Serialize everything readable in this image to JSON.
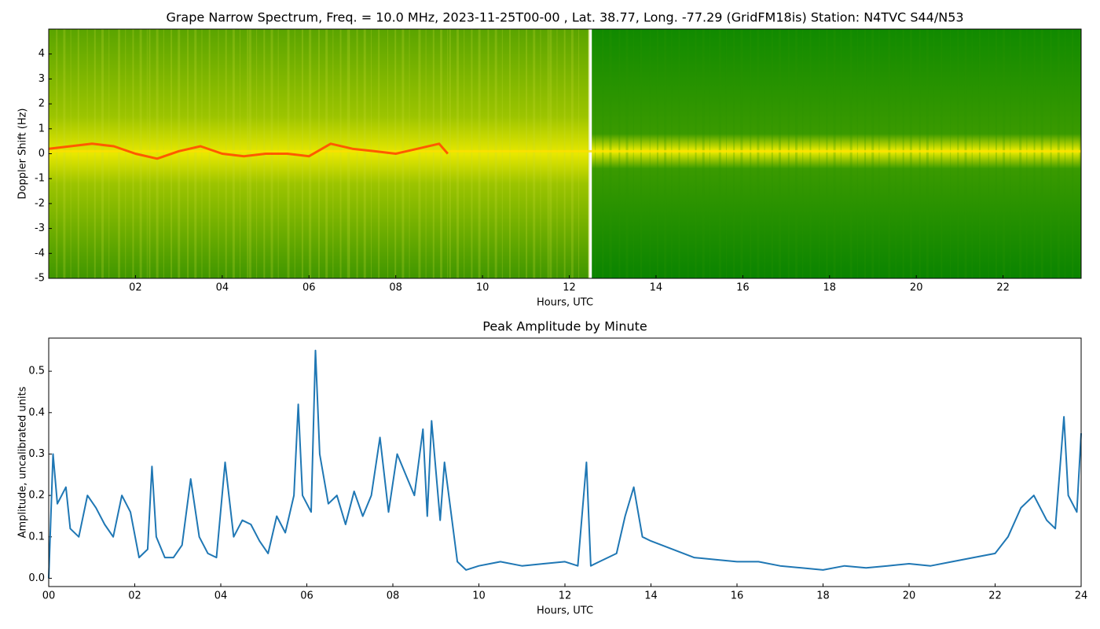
{
  "chart_data": [
    {
      "type": "spectrogram",
      "title": "Grape Narrow Spectrum, Freq. = 10.0 MHz, 2023-11-25T00-00 , Lat.  38.77, Long. -77.29 (GridFM18is) Station: N4TVC S44/N53",
      "xlabel": "Hours, UTC",
      "ylabel": "Doppler Shift (Hz)",
      "xlim": [
        0,
        23.8
      ],
      "ylim": [
        -5,
        5
      ],
      "xticks": [
        {
          "value": 2,
          "label": "02"
        },
        {
          "value": 4,
          "label": "04"
        },
        {
          "value": 6,
          "label": "06"
        },
        {
          "value": 8,
          "label": "08"
        },
        10,
        12,
        14,
        16,
        18,
        20,
        22
      ],
      "yticks": [
        -5,
        -4,
        -3,
        -2,
        -1,
        0,
        1,
        2,
        3,
        4
      ],
      "x": [
        0,
        0.5,
        1,
        1.5,
        2,
        2.5,
        3,
        3.5,
        4,
        4.5,
        5,
        5.5,
        6,
        6.5,
        7,
        7.5,
        8,
        8.5,
        9,
        9.2
      ],
      "values": [
        0.2,
        0.3,
        0.4,
        0.3,
        0.0,
        -0.2,
        0.1,
        0.3,
        0.0,
        -0.1,
        0.0,
        0.0,
        -0.1,
        0.4,
        0.2,
        0.1,
        0.0,
        0.2,
        0.4,
        0.0
      ],
      "color": "#ff5a00"
    },
    {
      "type": "line",
      "title": "Peak Amplitude by Minute",
      "xlabel": "Hours, UTC",
      "ylabel": "Amplitude, uncalibrated units",
      "xlim": [
        0,
        24
      ],
      "ylim": [
        -0.02,
        0.58
      ],
      "xticks": [
        {
          "value": 0,
          "label": "00"
        },
        {
          "value": 2,
          "label": "02"
        },
        {
          "value": 4,
          "label": "04"
        },
        {
          "value": 6,
          "label": "06"
        },
        {
          "value": 8,
          "label": "08"
        },
        10,
        12,
        14,
        16,
        18,
        20,
        22,
        24
      ],
      "yticks": [
        {
          "value": 0,
          "label": "0.0"
        },
        0.1,
        0.2,
        0.3,
        0.4,
        0.5
      ],
      "x": [
        0,
        0.1,
        0.2,
        0.4,
        0.5,
        0.7,
        0.9,
        1.1,
        1.3,
        1.5,
        1.7,
        1.9,
        2.1,
        2.3,
        2.4,
        2.5,
        2.7,
        2.9,
        3.1,
        3.3,
        3.5,
        3.7,
        3.9,
        4.1,
        4.3,
        4.5,
        4.7,
        4.9,
        5.1,
        5.3,
        5.5,
        5.7,
        5.8,
        5.9,
        6.1,
        6.2,
        6.3,
        6.5,
        6.7,
        6.9,
        7.1,
        7.3,
        7.5,
        7.7,
        7.9,
        8.1,
        8.3,
        8.5,
        8.7,
        8.8,
        8.9,
        9.1,
        9.2,
        9.3,
        9.5,
        9.7,
        10,
        10.5,
        11,
        11.5,
        12,
        12.3,
        12.5,
        12.6,
        12.8,
        13,
        13.2,
        13.4,
        13.6,
        13.8,
        14,
        14.5,
        15,
        15.5,
        16,
        16.5,
        17,
        17.5,
        18,
        18.5,
        19,
        19.5,
        20,
        20.5,
        21,
        21.5,
        22,
        22.3,
        22.6,
        22.9,
        23.2,
        23.4,
        23.6,
        23.7,
        23.9,
        24
      ],
      "values": [
        0,
        0.3,
        0.18,
        0.22,
        0.12,
        0.1,
        0.2,
        0.17,
        0.13,
        0.1,
        0.2,
        0.16,
        0.05,
        0.07,
        0.27,
        0.1,
        0.05,
        0.05,
        0.08,
        0.24,
        0.1,
        0.06,
        0.05,
        0.28,
        0.1,
        0.14,
        0.13,
        0.09,
        0.06,
        0.15,
        0.11,
        0.2,
        0.42,
        0.2,
        0.16,
        0.55,
        0.3,
        0.18,
        0.2,
        0.13,
        0.21,
        0.15,
        0.2,
        0.34,
        0.16,
        0.3,
        0.25,
        0.2,
        0.36,
        0.15,
        0.38,
        0.14,
        0.28,
        0.2,
        0.04,
        0.02,
        0.03,
        0.04,
        0.03,
        0.035,
        0.04,
        0.03,
        0.28,
        0.03,
        0.04,
        0.05,
        0.06,
        0.15,
        0.22,
        0.1,
        0.09,
        0.07,
        0.05,
        0.045,
        0.04,
        0.04,
        0.03,
        0.025,
        0.02,
        0.03,
        0.025,
        0.03,
        0.035,
        0.03,
        0.04,
        0.05,
        0.06,
        0.1,
        0.17,
        0.2,
        0.14,
        0.12,
        0.39,
        0.2,
        0.16,
        0.35
      ],
      "color": "#1f77b4"
    }
  ]
}
